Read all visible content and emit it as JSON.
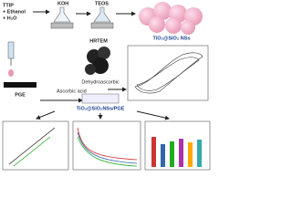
{
  "reagents": [
    "TTIP",
    "+ Ethanol",
    "+ H₂O"
  ],
  "steps": {
    "base": "KOH",
    "silica": "TEOS",
    "product": "TiO₂@SiO₂ NSs"
  },
  "microscopy": "HRTEM",
  "oxidized": "Dehydroascorbic",
  "analyte": "Ascorbic acid",
  "electrode": "PGE",
  "modified_electrode": "TiO₂@SiO₂NSs/PGE"
}
